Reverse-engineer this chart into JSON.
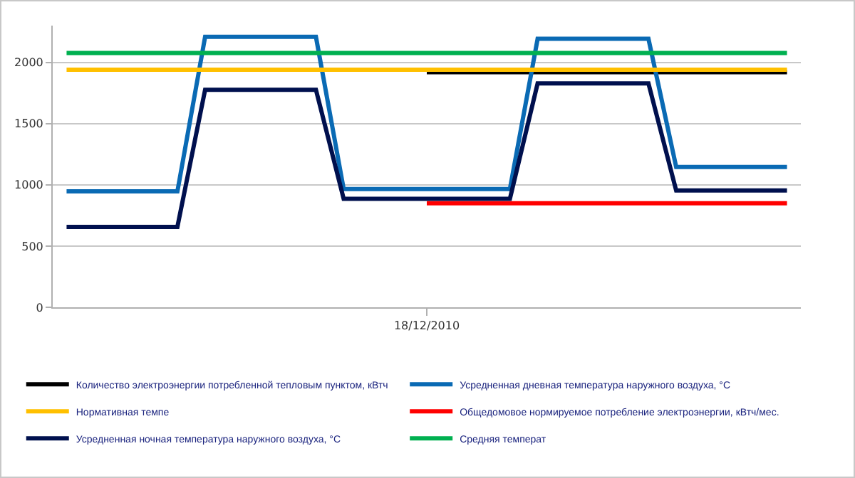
{
  "chart_data": {
    "type": "line",
    "ylim": [
      0,
      2300
    ],
    "yticks": [
      0,
      500,
      1000,
      1500,
      2000
    ],
    "grid": "y",
    "legend": "bottom",
    "marker": "none",
    "line_style": "solid",
    "categories": [
      null,
      null,
      null,
      null,
      null,
      null,
      null,
      null,
      null,
      null,
      null,
      null,
      null,
      "18/12/2010",
      null,
      null,
      null,
      null,
      null,
      null,
      null,
      null,
      null,
      null,
      null,
      null,
      null
    ],
    "series": [
      {
        "name": "Количество электроэнергии потребленной тепловым пунктом, кВтч",
        "color": "#000000",
        "values": [
          null,
          null,
          null,
          null,
          null,
          null,
          null,
          null,
          null,
          null,
          null,
          null,
          null,
          1920,
          1920,
          1920,
          1920,
          1920,
          1920,
          1920,
          1920,
          1920,
          1920,
          1920,
          1920,
          1920,
          1920
        ]
      },
      {
        "name": "Усредненная дневная температура наружного воздуха, °С",
        "color": "#0a6ab4",
        "values": [
          946,
          946,
          946,
          946,
          946,
          2208,
          2208,
          2208,
          2208,
          2208,
          966,
          966,
          966,
          966,
          966,
          966,
          966,
          2192,
          2192,
          2192,
          2192,
          2192,
          1146,
          1146,
          1146,
          1146,
          1146
        ]
      },
      {
        "name": "Нормативная темпе",
        "color": "#ffc000",
        "values": [
          1940,
          1940,
          1940,
          1940,
          1940,
          1940,
          1940,
          1940,
          1940,
          1940,
          1940,
          1940,
          1940,
          1940,
          1940,
          1940,
          1940,
          1940,
          1940,
          1940,
          1940,
          1940,
          1940,
          1940,
          1940,
          1940,
          1940
        ]
      },
      {
        "name": "Общедомовое нормируемое потребление электроэнергии, кВтч/мес.",
        "color": "#ff0000",
        "values": [
          null,
          null,
          null,
          null,
          null,
          null,
          null,
          null,
          null,
          null,
          null,
          null,
          null,
          850,
          850,
          850,
          850,
          850,
          850,
          850,
          850,
          850,
          850,
          850,
          850,
          850,
          850
        ]
      },
      {
        "name": "Усредненная ночная температура наружного воздуха, °С",
        "color": "#00104e",
        "values": [
          657,
          657,
          657,
          657,
          657,
          1776,
          1776,
          1776,
          1776,
          1776,
          886,
          886,
          886,
          886,
          886,
          886,
          886,
          1828,
          1828,
          1828,
          1828,
          1828,
          954,
          954,
          954,
          954,
          954
        ]
      },
      {
        "name": "Средняя температ",
        "color": "#00b050",
        "values": [
          2076,
          2076,
          2076,
          2076,
          2076,
          2076,
          2076,
          2076,
          2076,
          2076,
          2076,
          2076,
          2076,
          2076,
          2076,
          2076,
          2076,
          2076,
          2076,
          2076,
          2076,
          2076,
          2076,
          2076,
          2076,
          2076,
          2076
        ]
      }
    ]
  }
}
